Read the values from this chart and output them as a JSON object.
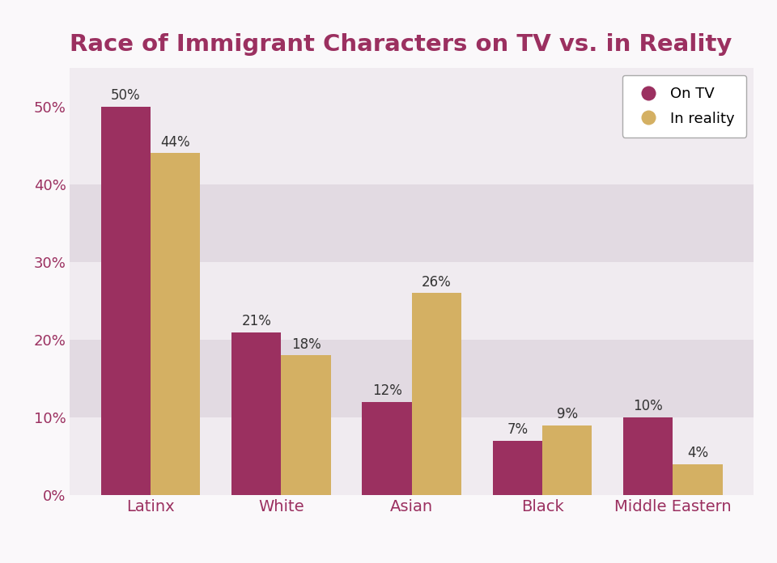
{
  "title": "Race of Immigrant Characters on TV vs. in Reality",
  "categories": [
    "Latinx",
    "White",
    "Asian",
    "Black",
    "Middle Eastern"
  ],
  "on_tv": [
    50,
    21,
    12,
    7,
    10
  ],
  "in_reality": [
    44,
    18,
    26,
    9,
    4
  ],
  "color_tv": "#9b3060",
  "color_reality": "#d4b063",
  "background_color": "#faf8fa",
  "plot_bg_light": "#f0ebf0",
  "plot_bg_dark": "#e2dae2",
  "title_color": "#9b3060",
  "axis_label_color": "#9b3060",
  "tick_label_color": "#9b3060",
  "bar_label_color": "#333333",
  "ylim": [
    0,
    55
  ],
  "yticks": [
    0,
    10,
    20,
    30,
    40,
    50
  ],
  "bar_width": 0.38,
  "title_fontsize": 21,
  "tick_fontsize": 13,
  "bar_label_fontsize": 12,
  "legend_fontsize": 13,
  "xlabel_fontsize": 14,
  "legend_tv": "On TV",
  "legend_reality": "In reality"
}
